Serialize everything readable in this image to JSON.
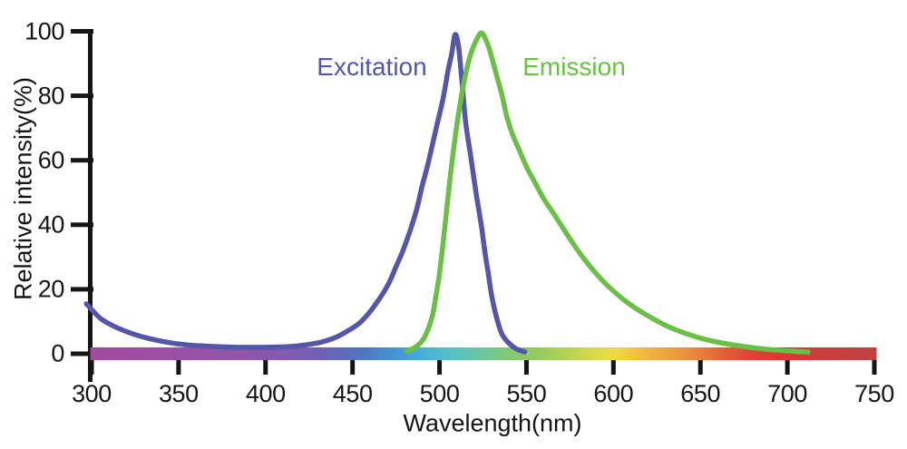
{
  "chart_data": {
    "type": "line",
    "title": "",
    "xlabel": "Wavelength(nm)",
    "ylabel": "Relative intensity(%)",
    "xlim": [
      300,
      750
    ],
    "ylim": [
      0,
      100
    ],
    "x_ticks": [
      300,
      350,
      400,
      450,
      500,
      550,
      600,
      650,
      700,
      750
    ],
    "y_ticks": [
      0,
      20,
      40,
      60,
      80,
      100
    ],
    "grid": false,
    "legend_position": "inline-labels-above-peaks",
    "axis_color": "#151515",
    "series": [
      {
        "name": "Excitation",
        "color": "#5456a8",
        "peak_nm": 509,
        "points": [
          [
            297,
            15.5
          ],
          [
            305,
            11
          ],
          [
            313,
            8.5
          ],
          [
            322,
            6.5
          ],
          [
            331,
            5
          ],
          [
            340,
            3.9
          ],
          [
            349,
            3.1
          ],
          [
            358,
            2.6
          ],
          [
            368,
            2.3
          ],
          [
            378,
            2.1
          ],
          [
            388,
            2.0
          ],
          [
            398,
            2.0
          ],
          [
            408,
            2.1
          ],
          [
            416,
            2.3
          ],
          [
            424,
            2.8
          ],
          [
            432,
            3.6
          ],
          [
            440,
            5
          ],
          [
            447,
            7
          ],
          [
            454,
            9.5
          ],
          [
            460,
            13
          ],
          [
            466,
            17.5
          ],
          [
            471,
            22
          ],
          [
            475,
            27
          ],
          [
            479,
            32
          ],
          [
            483,
            38
          ],
          [
            487,
            45
          ],
          [
            490,
            52
          ],
          [
            493,
            58
          ],
          [
            496,
            65
          ],
          [
            499,
            72
          ],
          [
            502,
            79
          ],
          [
            505,
            88
          ],
          [
            507,
            93
          ],
          [
            509,
            99
          ],
          [
            511,
            95
          ],
          [
            513,
            84
          ],
          [
            515,
            72
          ],
          [
            518,
            61
          ],
          [
            521,
            50
          ],
          [
            524,
            40
          ],
          [
            526,
            32
          ],
          [
            528,
            25
          ],
          [
            530,
            18
          ],
          [
            532,
            13
          ],
          [
            534,
            9
          ],
          [
            536,
            6
          ],
          [
            539,
            3.8
          ],
          [
            542,
            2.3
          ],
          [
            545,
            1.3
          ],
          [
            549,
            0.6
          ]
        ]
      },
      {
        "name": "Emission",
        "color": "#6cbf46",
        "peak_nm": 524,
        "points": [
          [
            481,
            0.8
          ],
          [
            486,
            2
          ],
          [
            490,
            4
          ],
          [
            493,
            7
          ],
          [
            496,
            12
          ],
          [
            498,
            18
          ],
          [
            500,
            25
          ],
          [
            502,
            34
          ],
          [
            504,
            44
          ],
          [
            506,
            54
          ],
          [
            508,
            63
          ],
          [
            510,
            71
          ],
          [
            512,
            78
          ],
          [
            514,
            84
          ],
          [
            516,
            89
          ],
          [
            518,
            93
          ],
          [
            521,
            97
          ],
          [
            524,
            99.5
          ],
          [
            527,
            97
          ],
          [
            530,
            92
          ],
          [
            533,
            86
          ],
          [
            536,
            80
          ],
          [
            539,
            73
          ],
          [
            542,
            68
          ],
          [
            546,
            63
          ],
          [
            550,
            58
          ],
          [
            555,
            53
          ],
          [
            560,
            48
          ],
          [
            565,
            44
          ],
          [
            571,
            39
          ],
          [
            577,
            34
          ],
          [
            583,
            29.5
          ],
          [
            589,
            25.5
          ],
          [
            595,
            22
          ],
          [
            602,
            18.5
          ],
          [
            609,
            15.5
          ],
          [
            616,
            13
          ],
          [
            624,
            10.5
          ],
          [
            632,
            8.3
          ],
          [
            640,
            6.6
          ],
          [
            649,
            5
          ],
          [
            658,
            3.8
          ],
          [
            668,
            2.8
          ],
          [
            677,
            2.1
          ],
          [
            688,
            1.4
          ],
          [
            700,
            0.9
          ],
          [
            712,
            0.5
          ]
        ]
      }
    ],
    "spectrum_bar": {
      "position": "along x-axis at 0% intensity",
      "stops": [
        {
          "nm": 300,
          "color": "#a34aa0"
        },
        {
          "nm": 340,
          "color": "#9d4fa4"
        },
        {
          "nm": 380,
          "color": "#9355a9"
        },
        {
          "nm": 410,
          "color": "#8459b0"
        },
        {
          "nm": 435,
          "color": "#6a63b8"
        },
        {
          "nm": 455,
          "color": "#5174c2"
        },
        {
          "nm": 472,
          "color": "#4590d0"
        },
        {
          "nm": 488,
          "color": "#47abd9"
        },
        {
          "nm": 502,
          "color": "#52bdcd"
        },
        {
          "nm": 515,
          "color": "#5fc5b4"
        },
        {
          "nm": 528,
          "color": "#70c892"
        },
        {
          "nm": 540,
          "color": "#81ca72"
        },
        {
          "nm": 555,
          "color": "#93cb5f"
        },
        {
          "nm": 572,
          "color": "#b3d254"
        },
        {
          "nm": 588,
          "color": "#d8d94b"
        },
        {
          "nm": 600,
          "color": "#f0d945"
        },
        {
          "nm": 615,
          "color": "#f0bc41"
        },
        {
          "nm": 632,
          "color": "#eda03e"
        },
        {
          "nm": 648,
          "color": "#e8823b"
        },
        {
          "nm": 663,
          "color": "#e15f38"
        },
        {
          "nm": 678,
          "color": "#d94635"
        },
        {
          "nm": 695,
          "color": "#d43b35"
        },
        {
          "nm": 725,
          "color": "#c93f3d"
        },
        {
          "nm": 750,
          "color": "#bc4343"
        }
      ]
    }
  }
}
